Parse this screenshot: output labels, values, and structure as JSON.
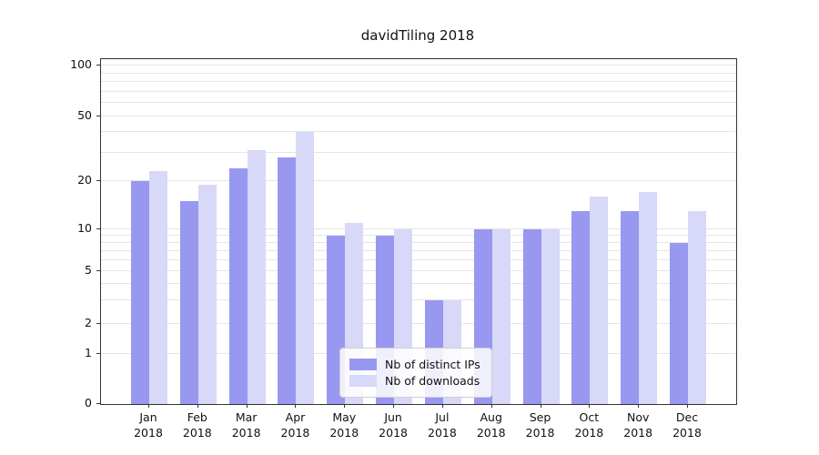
{
  "chart_data": {
    "type": "bar",
    "title": "davidTiling 2018",
    "categories": [
      "Jan",
      "Feb",
      "Mar",
      "Apr",
      "May",
      "Jun",
      "Jul",
      "Aug",
      "Sep",
      "Oct",
      "Nov",
      "Dec"
    ],
    "year_label": "2018",
    "series": [
      {
        "name": "Nb of distinct IPs",
        "color": "#9898f0",
        "values": [
          20,
          15,
          24,
          28,
          9,
          9,
          3,
          10,
          10,
          13,
          13,
          8
        ]
      },
      {
        "name": "Nb of downloads",
        "color": "#d8d8f8",
        "values": [
          23,
          19,
          31,
          40,
          11,
          10,
          3,
          10,
          10,
          16,
          17,
          13
        ]
      }
    ],
    "yscale": "symlog",
    "yticks": [
      0,
      1,
      2,
      5,
      10,
      20,
      50,
      100
    ],
    "ylim": [
      0,
      110
    ],
    "grid": true,
    "legend": {
      "position": "bottom-center",
      "entries": [
        "Nb of distinct IPs",
        "Nb of downloads"
      ]
    }
  }
}
